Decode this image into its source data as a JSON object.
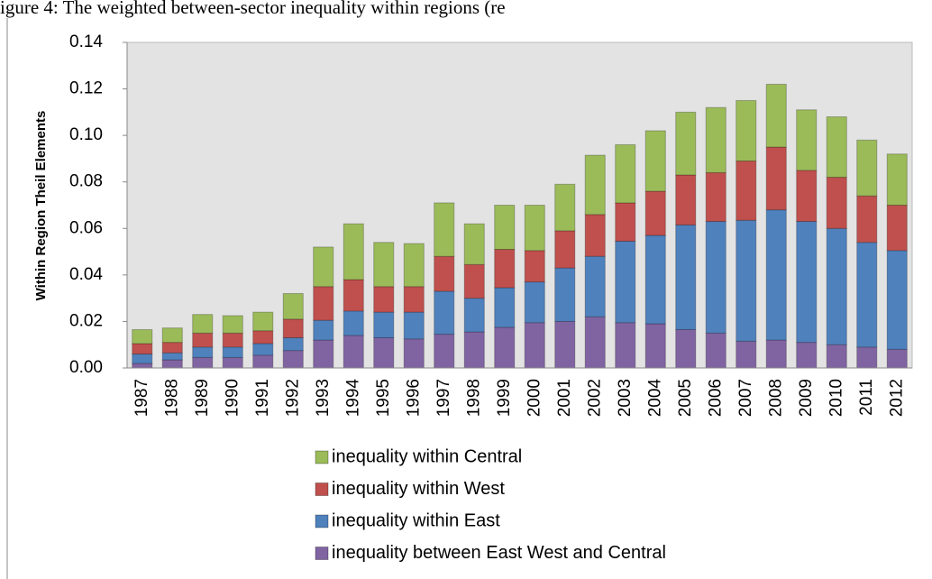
{
  "chart_data": {
    "type": "stacked_bar",
    "title": "igure 4: The weighted between-sector inequality within regions (re",
    "y_label": "Within Region Theil Elements",
    "categories": [
      "1987",
      "1988",
      "1989",
      "1990",
      "1991",
      "1992",
      "1993",
      "1994",
      "1995",
      "1996",
      "1997",
      "1998",
      "1999",
      "2000",
      "2001",
      "2002",
      "2003",
      "2004",
      "2005",
      "2006",
      "2007",
      "2008",
      "2009",
      "2010",
      "2011",
      "2012"
    ],
    "series": [
      {
        "name": "inequality between East West and Central",
        "color": "#8064a2",
        "values": [
          0.002,
          0.0035,
          0.0045,
          0.0045,
          0.0055,
          0.0075,
          0.012,
          0.014,
          0.013,
          0.0125,
          0.0145,
          0.0155,
          0.0175,
          0.0195,
          0.02,
          0.022,
          0.0195,
          0.019,
          0.0165,
          0.015,
          0.0115,
          0.012,
          0.011,
          0.01,
          0.009,
          0.008
        ]
      },
      {
        "name": "inequality within East",
        "color": "#4f81bd",
        "values": [
          0.004,
          0.003,
          0.0045,
          0.0045,
          0.005,
          0.0055,
          0.0085,
          0.0105,
          0.011,
          0.0115,
          0.0185,
          0.0145,
          0.017,
          0.0175,
          0.023,
          0.026,
          0.035,
          0.038,
          0.045,
          0.048,
          0.052,
          0.056,
          0.052,
          0.05,
          0.045,
          0.0425
        ]
      },
      {
        "name": "inequality within West",
        "color": "#c0504d",
        "values": [
          0.0045,
          0.0045,
          0.006,
          0.006,
          0.0055,
          0.008,
          0.0145,
          0.0135,
          0.011,
          0.011,
          0.015,
          0.0145,
          0.0165,
          0.0135,
          0.016,
          0.018,
          0.0165,
          0.019,
          0.0215,
          0.021,
          0.0255,
          0.027,
          0.022,
          0.022,
          0.02,
          0.0195
        ]
      },
      {
        "name": "inequality within Central",
        "color": "#9bbb59",
        "values": [
          0.006,
          0.0062,
          0.008,
          0.0075,
          0.008,
          0.011,
          0.017,
          0.024,
          0.019,
          0.0185,
          0.023,
          0.0175,
          0.019,
          0.0195,
          0.02,
          0.0255,
          0.025,
          0.026,
          0.027,
          0.028,
          0.026,
          0.027,
          0.026,
          0.026,
          0.024,
          0.022
        ]
      }
    ],
    "ylim": [
      0,
      0.14
    ],
    "yticks": [
      {
        "value": 0,
        "label": "0.00"
      },
      {
        "value": 0.02,
        "label": "0.02"
      },
      {
        "value": 0.04,
        "label": "0.04"
      },
      {
        "value": 0.06,
        "label": "0.06"
      },
      {
        "value": 0.08,
        "label": "0.08"
      },
      {
        "value": 0.1,
        "label": "0.10"
      },
      {
        "value": 0.12,
        "label": "0.12"
      },
      {
        "value": 0.14,
        "label": "0.14"
      }
    ],
    "grid": false,
    "legend": "bottom"
  }
}
